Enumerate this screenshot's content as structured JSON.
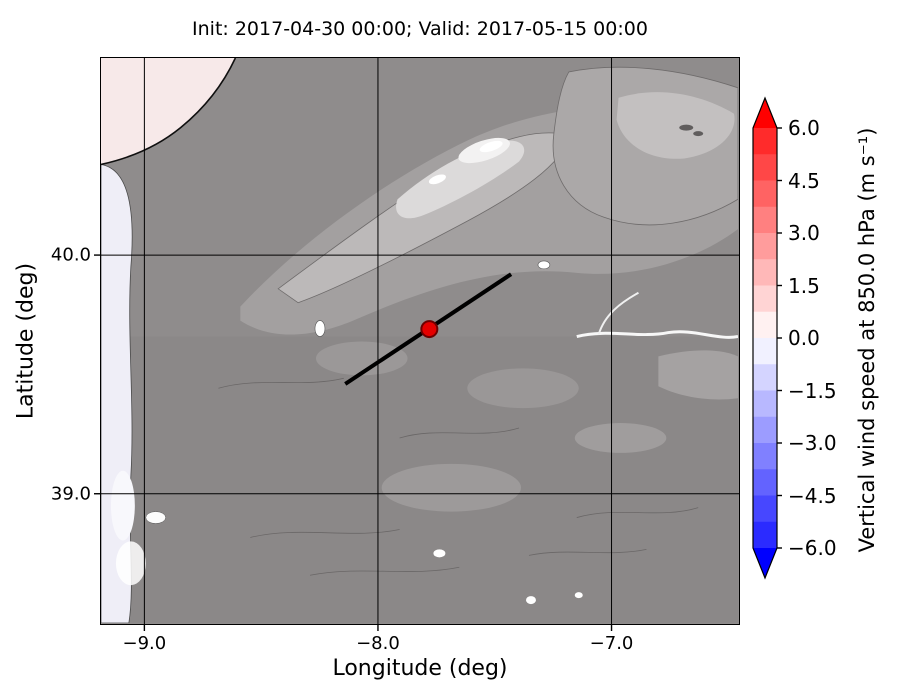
{
  "chart_data": {
    "type": "heatmap",
    "description": "Filled-contour map (terrain shown in gray shades) of vertical wind speed at 850 hPa over central Portugal, with a black cross-section line and a red location marker; diverging blue-white-red colorbar on the right.",
    "title": "Init: 2017-04-30 00:00; Valid: 2017-05-15 00:00",
    "xlabel": "Longitude (deg)",
    "ylabel": "Latitude (deg)",
    "axes": {
      "xlim": [
        -9.19,
        -6.45
      ],
      "ylim": [
        38.45,
        40.83
      ],
      "x_ticks": [
        {
          "value": -9.0,
          "label": "−9.0"
        },
        {
          "value": -8.0,
          "label": "−8.0"
        },
        {
          "value": -7.0,
          "label": "−7.0"
        }
      ],
      "y_ticks": [
        {
          "value": 40.0,
          "label": "40.0"
        },
        {
          "value": 39.0,
          "label": "39.0"
        }
      ],
      "grid": true,
      "grid_color": "#000000"
    },
    "colorbar": {
      "label": "Vertical wind speed at 850.0 hPa (m s⁻¹)",
      "vmin": -6.0,
      "vmax": 6.0,
      "extend": "both",
      "tick_values": [
        6.0,
        4.5,
        3.0,
        1.5,
        0.0,
        -1.5,
        -3.0,
        -4.5,
        -6.0
      ],
      "tick_labels": [
        "6.0",
        "4.5",
        "3.0",
        "1.5",
        "0.0",
        "−1.5",
        "−3.0",
        "−4.5",
        "−6.0"
      ],
      "over_color": "#ff0000",
      "under_color": "#0000ff",
      "segment_colors": [
        "#ff2b2b",
        "#ff4747",
        "#ff6363",
        "#ff8080",
        "#ff9c9c",
        "#ffb8b8",
        "#ffd4d4",
        "#fff1f1",
        "#f1f1ff",
        "#d4d4ff",
        "#b8b8ff",
        "#9c9cff",
        "#8080ff",
        "#6363ff",
        "#4747ff",
        "#2b2bff"
      ]
    },
    "overlays": {
      "cross_section_line": {
        "lon": [
          -8.14,
          -7.43
        ],
        "lat": [
          39.46,
          39.92
        ],
        "color": "#000000",
        "width": 4
      },
      "marker": {
        "lon": -7.78,
        "lat": 39.69,
        "fill": "#e50000",
        "edge": "#6e0000",
        "radius": 8
      }
    },
    "map_colors": {
      "land_gray": "#8f8c8c",
      "sea_pale_pink": "#f7e9e9",
      "sea_pale_lavender": "#efeef7",
      "high_terrain_white": "#ffffff"
    }
  }
}
